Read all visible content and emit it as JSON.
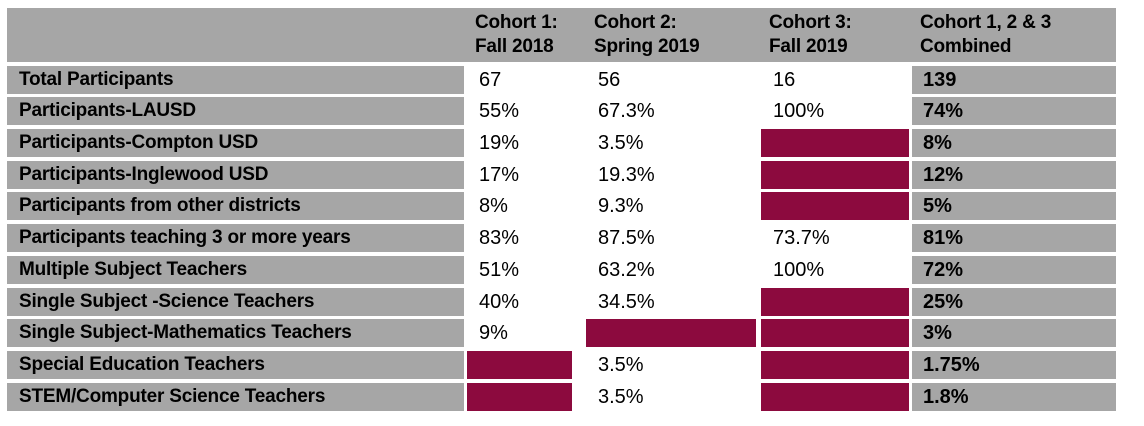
{
  "colors": {
    "cell_gray": "#A6A6A6",
    "filled_maroon": "#8C0A3E",
    "page_background": "#FFFFFF",
    "text": "#000000"
  },
  "header": {
    "corner_label": "",
    "columns": [
      {
        "line1": "Cohort 1:",
        "line2": "Fall 2018"
      },
      {
        "line1": "Cohort 2:",
        "line2": "Spring 2019"
      },
      {
        "line1": "Cohort 3:",
        "line2": "Fall 2019"
      },
      {
        "line1": "Cohort 1, 2 & 3",
        "line2": "Combined"
      }
    ]
  },
  "rows": [
    {
      "label": "Total Participants",
      "cohort1": "67",
      "cohort2": "56",
      "cohort3": "16",
      "combined": "139"
    },
    {
      "label": "Participants-LAUSD",
      "cohort1": "55%",
      "cohort2": "67.3%",
      "cohort3": "100%",
      "combined": "74%"
    },
    {
      "label": "Participants-Compton USD",
      "cohort1": "19%",
      "cohort2": "3.5%",
      "cohort3": null,
      "combined": "8%"
    },
    {
      "label": "Participants-Inglewood USD",
      "cohort1": "17%",
      "cohort2": "19.3%",
      "cohort3": null,
      "combined": "12%"
    },
    {
      "label": "Participants from other districts",
      "cohort1": "8%",
      "cohort2": "9.3%",
      "cohort3": null,
      "combined": "5%"
    },
    {
      "label": "Participants teaching 3 or more years",
      "cohort1": "83%",
      "cohort2": "87.5%",
      "cohort3": "73.7%",
      "combined": "81%"
    },
    {
      "label": "Multiple Subject Teachers",
      "cohort1": "51%",
      "cohort2": "63.2%",
      "cohort3": "100%",
      "combined": "72%"
    },
    {
      "label": "Single Subject -Science Teachers",
      "cohort1": "40%",
      "cohort2": "34.5%",
      "cohort3": null,
      "combined": "25%"
    },
    {
      "label": "Single Subject-Mathematics Teachers",
      "cohort1": "9%",
      "cohort2": null,
      "cohort3": null,
      "combined": "3%"
    },
    {
      "label": "Special Education Teachers",
      "cohort1": null,
      "cohort2": "3.5%",
      "cohort3": null,
      "combined": "1.75%"
    },
    {
      "label": "STEM/Computer Science Teachers",
      "cohort1": null,
      "cohort2": "3.5%",
      "cohort3": null,
      "combined": "1.8%"
    }
  ]
}
